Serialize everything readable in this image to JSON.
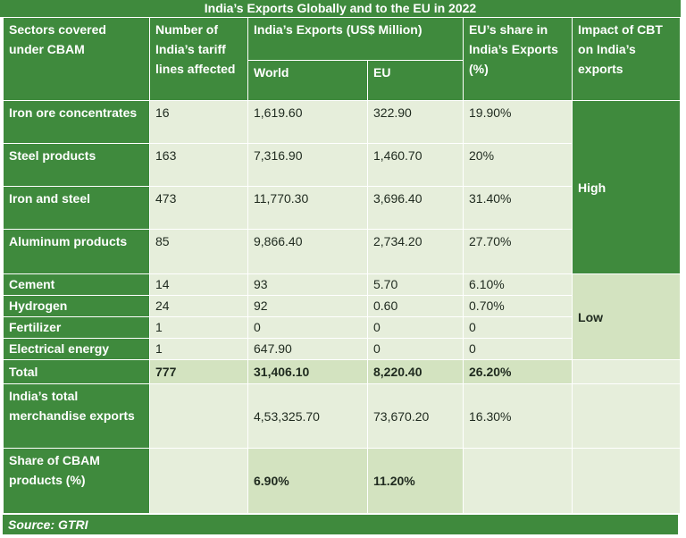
{
  "title": "India’s Exports Globally and to the EU in 2022",
  "headers": {
    "sectors": "Sectors covered under CBAM",
    "tariff_lines": "Number of India’s tariff lines affected",
    "exports": "India’s Exports (US$ Million)",
    "world": "World",
    "eu": "EU",
    "share": "EU’s share in India’s Exports (%)",
    "impact": "Impact of CBT on India’s exports"
  },
  "rows": [
    {
      "sector": "Iron ore concentrates",
      "lines": "16",
      "world": "1,619.60",
      "eu": "322.90",
      "share": "19.90%"
    },
    {
      "sector": "Steel products",
      "lines": "163",
      "world": "7,316.90",
      "eu": "1,460.70",
      "share": "20%"
    },
    {
      "sector": "Iron and steel",
      "lines": "473",
      "world": "11,770.30",
      "eu": "3,696.40",
      "share": "31.40%"
    },
    {
      "sector": "Aluminum products",
      "lines": "85",
      "world": "9,866.40",
      "eu": "2,734.20",
      "share": "27.70%"
    },
    {
      "sector": "Cement",
      "lines": "14",
      "world": "93",
      "eu": "5.70",
      "share": "6.10%"
    },
    {
      "sector": "Hydrogen",
      "lines": "24",
      "world": "92",
      "eu": "0.60",
      "share": "0.70%"
    },
    {
      "sector": "Fertilizer",
      "lines": "1",
      "world": "0",
      "eu": "0",
      "share": "0"
    },
    {
      "sector": "Electrical energy",
      "lines": "1",
      "world": "647.90",
      "eu": "0",
      "share": "0"
    }
  ],
  "impact": {
    "high": "High",
    "low": "Low"
  },
  "total": {
    "label": "Total",
    "lines": "777",
    "world": "31,406.10",
    "eu": "8,220.40",
    "share": "26.20%"
  },
  "merch": {
    "label": "India’s total merchandise exports",
    "world": "4,53,325.70",
    "eu": "73,670.20",
    "share": "16.30%"
  },
  "cbam_share": {
    "label": "Share of CBAM products (%)",
    "world": "6.90%",
    "eu": "11.20%"
  },
  "source": "Source: GTRI"
}
